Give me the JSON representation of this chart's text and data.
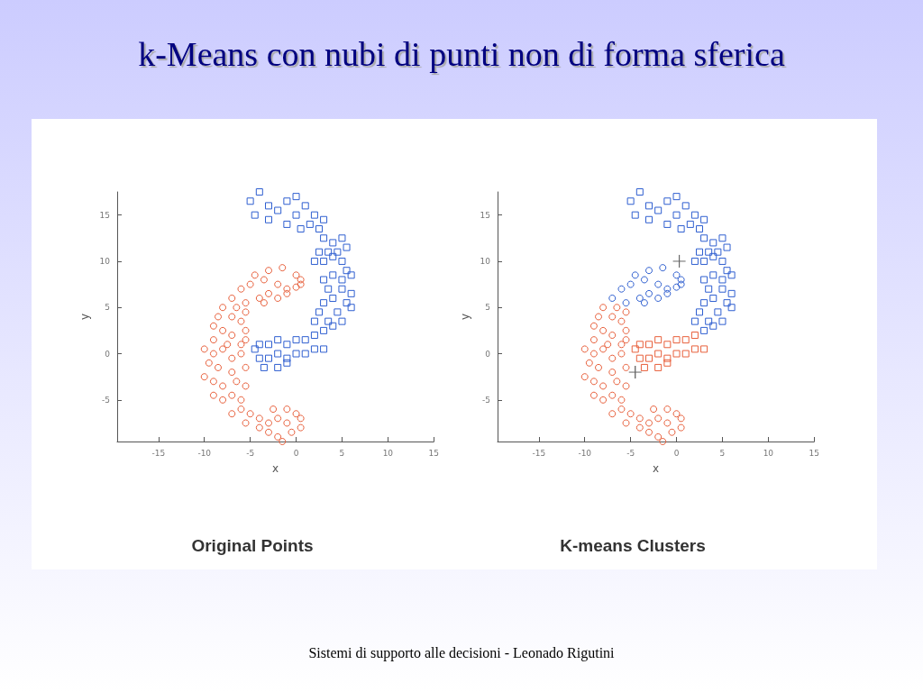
{
  "chart_data": [
    {
      "type": "other",
      "title": "k-Means con nubi di punti non di forma sferica",
      "annotations": [
        "Sistemi di supporto alle decisioni - Leonado Rigutini"
      ]
    },
    {
      "type": "scatter",
      "title": "Original Points",
      "xlabel": "x",
      "ylabel": "y",
      "xlim": [
        -19.5,
        15
      ],
      "ylim": [
        -9.5,
        17.5
      ],
      "xticks": [
        -15,
        -10,
        -5,
        0,
        5,
        10,
        15
      ],
      "yticks": [
        -5,
        0,
        5,
        10,
        15
      ],
      "grid": false,
      "series": [
        {
          "color": "#e8603c",
          "marker": "circle",
          "x": [
            -3,
            -1.5,
            0,
            0.5,
            -2,
            -1,
            0,
            -3.5,
            -4.5,
            -5,
            -3,
            -2,
            -4,
            -3.5,
            -1,
            0.5,
            -6,
            -7,
            -5.5,
            -6.5,
            -5.5,
            -8,
            -8.5,
            -7,
            -6,
            -5.5,
            -9,
            -8,
            -7,
            -5.5,
            -9,
            -7.5,
            -6,
            -10,
            -9,
            -8,
            -7,
            -6,
            -9.5,
            -8.5,
            -7,
            -5.5,
            -10,
            -9,
            -8,
            -6.5,
            -5.5,
            -9,
            -8,
            -7,
            -6,
            -7,
            -6,
            -5,
            -4,
            -5.5,
            -4,
            -3,
            -2.5,
            -2,
            -1,
            0,
            0.5,
            -0.5,
            -2,
            -1.5,
            -3,
            0.5,
            -1
          ],
          "values": [
            9,
            9.3,
            8.5,
            8,
            7.5,
            7,
            7.2,
            8,
            8.5,
            7.5,
            6.5,
            6,
            6,
            5.5,
            6.5,
            7.5,
            7,
            6,
            5.5,
            5,
            4.5,
            5,
            4,
            4,
            3.5,
            2.5,
            3,
            2.5,
            2,
            1.5,
            1.5,
            1,
            1,
            0.5,
            0,
            0.5,
            -0.5,
            0,
            -1,
            -1.5,
            -2,
            -1.5,
            -2.5,
            -3,
            -3.5,
            -3,
            -3.5,
            -4.5,
            -5,
            -4.5,
            -5,
            -6.5,
            -6,
            -6.5,
            -7,
            -7.5,
            -8,
            -7.5,
            -6,
            -7,
            -7.5,
            -6.5,
            -7,
            -8.5,
            -9,
            -9.5,
            -8.5,
            -8,
            -6
          ]
        },
        {
          "color": "#2f5fd0",
          "marker": "square",
          "x": [
            -5,
            -4,
            -3,
            -2,
            -1,
            0,
            -4.5,
            -3,
            -1,
            0,
            1,
            2,
            1.5,
            3,
            2.5,
            0.5,
            3,
            4,
            5,
            3.5,
            4.5,
            5.5,
            2.5,
            3,
            4,
            5,
            2,
            5.5,
            3,
            4,
            5,
            6,
            3.5,
            5,
            6,
            4,
            5.5,
            3,
            2.5,
            4.5,
            6,
            2,
            3.5,
            5,
            3,
            4,
            2,
            1,
            0,
            -1,
            -2,
            -3,
            -4,
            -4.5,
            1,
            0,
            -1,
            -2,
            -3,
            -4,
            -3.5,
            -2,
            -1,
            2,
            3
          ],
          "values": [
            16.5,
            17.5,
            16,
            15.5,
            16.5,
            17,
            15,
            14.5,
            14,
            15,
            16,
            15,
            14,
            14.5,
            13.5,
            13.5,
            12.5,
            12,
            12.5,
            11,
            11,
            11.5,
            11,
            10,
            10.5,
            10,
            10,
            9,
            8,
            8.5,
            8,
            8.5,
            7,
            7,
            6.5,
            6,
            5.5,
            5.5,
            4.5,
            4.5,
            5,
            3.5,
            3.5,
            3.5,
            2.5,
            3,
            2,
            1.5,
            1.5,
            1,
            1.5,
            1,
            1,
            0.5,
            0,
            0,
            -0.5,
            0,
            -0.5,
            -0.5,
            -1.5,
            -1.5,
            -1,
            0.5,
            0.5
          ]
        }
      ]
    },
    {
      "type": "scatter",
      "title": "K-means Clusters",
      "xlabel": "x",
      "ylabel": "y",
      "xlim": [
        -19.5,
        15
      ],
      "ylim": [
        -9.5,
        17.5
      ],
      "xticks": [
        -15,
        -10,
        -5,
        0,
        5,
        10,
        15
      ],
      "yticks": [
        -5,
        0,
        5,
        10,
        15
      ],
      "grid": false,
      "series": [
        {
          "color": "#2f5fd0",
          "marker": "circle",
          "x": [
            -3,
            -1.5,
            0,
            0.5,
            -2,
            -1,
            0,
            -3.5,
            -4.5,
            -5,
            -3,
            -2,
            -4,
            -3.5,
            -1,
            0.5,
            -6,
            -7,
            -5.5
          ],
          "values": [
            9,
            9.3,
            8.5,
            8,
            7.5,
            7,
            7.2,
            8,
            8.5,
            7.5,
            6.5,
            6,
            6,
            5.5,
            6.5,
            7.5,
            7,
            6,
            5.5
          ]
        },
        {
          "color": "#e8603c",
          "marker": "circle",
          "x": [
            -6.5,
            -5.5,
            -8,
            -8.5,
            -7,
            -6,
            -5.5,
            -9,
            -8,
            -7,
            -5.5,
            -9,
            -7.5,
            -6,
            -10,
            -9,
            -8,
            -7,
            -6,
            -9.5,
            -8.5,
            -7,
            -5.5,
            -10,
            -9,
            -8,
            -6.5,
            -5.5,
            -9,
            -8,
            -7,
            -6,
            -7,
            -6,
            -5,
            -4,
            -5.5,
            -4,
            -3,
            -2.5,
            -2,
            -1,
            0,
            0.5,
            -0.5,
            -2,
            -1.5,
            -3,
            0.5,
            -1
          ],
          "values": [
            5,
            4.5,
            5,
            4,
            4,
            3.5,
            2.5,
            3,
            2.5,
            2,
            1.5,
            1.5,
            1,
            1,
            0.5,
            0,
            0.5,
            -0.5,
            0,
            -1,
            -1.5,
            -2,
            -1.5,
            -2.5,
            -3,
            -3.5,
            -3,
            -3.5,
            -4.5,
            -5,
            -4.5,
            -5,
            -6.5,
            -6,
            -6.5,
            -7,
            -7.5,
            -8,
            -7.5,
            -6,
            -7,
            -7.5,
            -6.5,
            -7,
            -8.5,
            -9,
            -9.5,
            -8.5,
            -8,
            -6
          ]
        },
        {
          "color": "#2f5fd0",
          "marker": "square",
          "x": [
            -5,
            -4,
            -3,
            -2,
            -1,
            0,
            -4.5,
            -3,
            -1,
            0,
            1,
            2,
            1.5,
            3,
            2.5,
            0.5,
            3,
            4,
            5,
            3.5,
            4.5,
            5.5,
            2.5,
            3,
            4,
            5,
            2,
            5.5,
            3,
            4,
            5,
            6,
            3.5,
            5,
            6,
            4,
            5.5,
            3,
            2.5,
            4.5,
            6,
            2,
            3.5,
            5,
            3,
            4
          ],
          "values": [
            16.5,
            17.5,
            16,
            15.5,
            16.5,
            17,
            15,
            14.5,
            14,
            15,
            16,
            15,
            14,
            14.5,
            13.5,
            13.5,
            12.5,
            12,
            12.5,
            11,
            11,
            11.5,
            11,
            10,
            10.5,
            10,
            10,
            9,
            8,
            8.5,
            8,
            8.5,
            7,
            7,
            6.5,
            6,
            5.5,
            5.5,
            4.5,
            4.5,
            5,
            3.5,
            3.5,
            3.5,
            2.5,
            3
          ]
        },
        {
          "color": "#e8603c",
          "marker": "square",
          "x": [
            2,
            1,
            0,
            -1,
            -2,
            -3,
            -4,
            -4.5,
            1,
            0,
            -1,
            -2,
            -3,
            -4,
            -3.5,
            -2,
            -1,
            2,
            3
          ],
          "values": [
            2,
            1.5,
            1.5,
            1,
            1.5,
            1,
            1,
            0.5,
            0,
            0,
            -0.5,
            0,
            -0.5,
            -0.5,
            -1.5,
            -1.5,
            -1,
            0.5,
            0.5
          ]
        },
        {
          "color": "#666666",
          "marker": "cross",
          "x": [
            0.3,
            -4.5
          ],
          "values": [
            10,
            -2
          ]
        }
      ]
    }
  ]
}
